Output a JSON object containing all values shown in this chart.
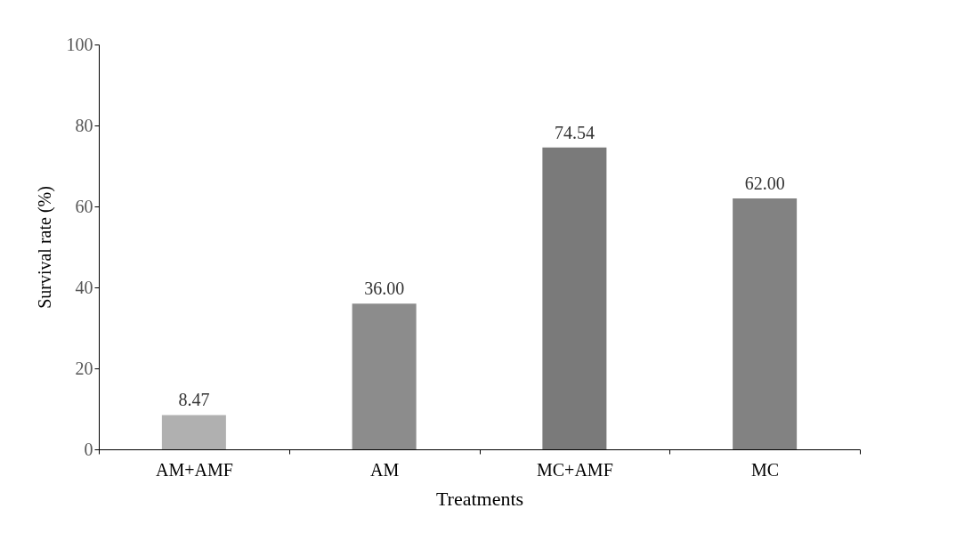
{
  "chart_data": {
    "type": "bar",
    "xlabel": "Treatments",
    "ylabel": "Survival rate (%)",
    "categories": [
      "AM+AMF",
      "AM",
      "MC+AMF",
      "MC"
    ],
    "values": [
      8.47,
      36.0,
      74.54,
      62.0
    ],
    "value_labels": [
      "8.47",
      "36.00",
      "74.54",
      "62.00"
    ],
    "colors": [
      "#b0b0b0",
      "#8c8c8c",
      "#7a7a7a",
      "#828282"
    ],
    "ylim": [
      0,
      100
    ],
    "yticks": [
      0,
      20,
      40,
      60,
      80,
      100
    ],
    "grid": false
  }
}
